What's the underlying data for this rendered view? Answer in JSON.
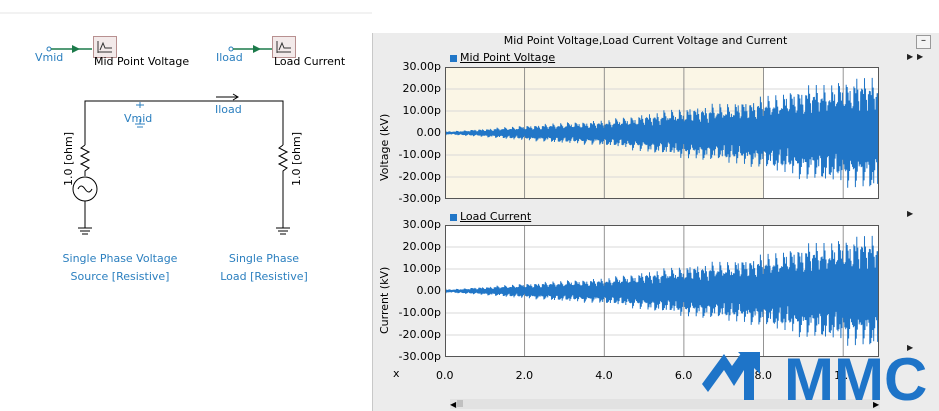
{
  "schematic": {
    "vmid_input_label": "Vmid",
    "vmid_meter_label": "Mid Point Voltage",
    "iload_input_label": "Iload",
    "iload_meter_label": "Load Current",
    "node_vmid_label": "Vmid",
    "branch_iload_label": "Iload",
    "source_resistor_label": "1.0 [ohm]",
    "load_resistor_label": "1.0 [ohm]",
    "source_caption_line1": "Single Phase Voltage",
    "source_caption_line2": "Source [Resistive]",
    "load_caption_line1": "Single Phase",
    "load_caption_line2": "Load [Resistive]"
  },
  "plot_window": {
    "title": "Mid Point Voltage,Load Current Voltage and Current",
    "minimize_label": "–",
    "x_axis_name": "x",
    "logo_text": "MMC"
  },
  "chart_data": [
    {
      "type": "line",
      "title": "Mid Point Voltage",
      "ylabel": "Voltage (kV)",
      "xlabel": "",
      "ylim": [
        -30,
        30
      ],
      "xlim": [
        0,
        10.9
      ],
      "yticks": [
        "30.00p",
        "20.00p",
        "10.00p",
        "0.00",
        "-10.00p",
        "-20.00p",
        "-30.00p"
      ],
      "grid": true,
      "legend": "top-left",
      "series": [
        {
          "name": "Mid Point Voltage",
          "color": "#2176c7",
          "envelope_x": [
            0,
            1,
            2,
            3,
            4,
            5,
            6,
            7,
            8,
            9,
            10,
            10.9
          ],
          "envelope_y": [
            0.6,
            2,
            3.5,
            5,
            6,
            9,
            12,
            14,
            17,
            22,
            25,
            28
          ]
        }
      ]
    },
    {
      "type": "line",
      "title": "Load Current",
      "ylabel": "Current (kV)",
      "xlabel": "",
      "ylim": [
        -30,
        30
      ],
      "xlim": [
        0,
        10.9
      ],
      "yticks": [
        "30.00p",
        "20.00p",
        "10.00p",
        "0.00",
        "-10.00p",
        "-20.00p",
        "-30.00p"
      ],
      "xticks": [
        "0.0",
        "2.0",
        "4.0",
        "6.0",
        "8.0",
        "1..."
      ],
      "grid": true,
      "legend": "top-left",
      "series": [
        {
          "name": "Load Current",
          "color": "#2176c7",
          "envelope_x": [
            0,
            1,
            2,
            3,
            4,
            5,
            6,
            7,
            8,
            9,
            10,
            10.9
          ],
          "envelope_y": [
            0.6,
            2,
            3.5,
            5,
            6,
            9,
            12,
            14,
            17,
            22,
            25,
            28
          ]
        }
      ]
    }
  ]
}
